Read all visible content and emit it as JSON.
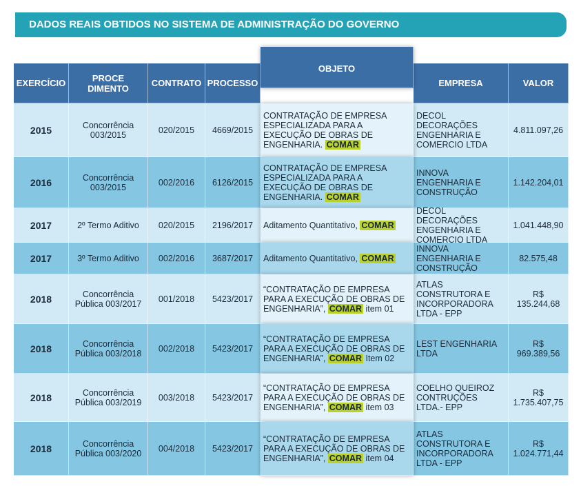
{
  "header": {
    "title": "DADOS REAIS OBTIDOS NO SISTEMA DE ADMINISTRAÇÃO DO GOVERNO"
  },
  "table": {
    "columns": [
      "EXERCÍCIO",
      "PROCE DIMENTO",
      "CONTRATO",
      "PROCESSO",
      "OBJETO",
      "EMPRESA",
      "VALOR"
    ],
    "rows": [
      [
        "2015",
        "Concorrência 003/2015",
        "020/2015",
        "4669/2015",
        {
          "text": "CONTRATAÇÃO DE EMPRESA ESPECIALIZADA PARA A EXECUÇÃO DE OBRAS DE ENGENHARIA.",
          "highlight": "COMAR"
        },
        "DECOL DECORAÇÕES ENGENHARIA E COMERCIO LTDA",
        "4.811.097,26"
      ],
      [
        "2016",
        "Concorrência 003/2015",
        "002/2016",
        "6126/2015",
        {
          "text": "CONTRATAÇÃO DE EMPRESA ESPECIALIZADA PARA A EXECUÇÃO DE OBRAS DE ENGENHARIA.",
          "highlight": "COMAR"
        },
        "INNOVA ENGENHARIA E CONSTRUÇÃO",
        "1.142.204,01"
      ],
      [
        "2017",
        "2º Termo Aditivo",
        "020/2015",
        "2196/2017",
        {
          "text": "Aditamento Quantitativo,",
          "highlight": "COMAR"
        },
        "DECOL DECORAÇÕES ENGENHARIA E COMERCIO LTDA",
        "1.041.448,90"
      ],
      [
        "2017",
        "3º Termo Aditivo",
        "002/2016",
        "3687/2017",
        {
          "text": "Aditamento Quantitativo,",
          "highlight": "COMAR"
        },
        "INNOVA ENGENHARIA E CONSTRUÇÃO",
        "82.575,48"
      ],
      [
        "2018",
        "Concorrência Pública 003/2017",
        "001/2018",
        "5423/2017",
        {
          "text": "“CONTRATAÇÃO DE EMPRESA PARA A EXECUÇÃO DE OBRAS DE ENGENHARIA”,",
          "highlight": "COMAR",
          "suffix": "item 01"
        },
        "ATLAS CONSTRUTORA E INCORPORADORA LTDA - EPP",
        "R$ 135.244,68"
      ],
      [
        "2018",
        "Concorrência Pública 003/2018",
        "002/2018",
        "5423/2017",
        {
          "text": "“CONTRATAÇÃO DE EMPRESA PARA A EXECUÇÃO DE OBRAS DE ENGENHARIA”,",
          "highlight": "COMAR",
          "suffix": "Item 02"
        },
        "LEST ENGENHARIA LTDA",
        "R$ 969.389,56"
      ],
      [
        "2018",
        "Concorrência Pública 003/2019",
        "003/2018",
        "5423/2017",
        {
          "text": "“CONTRATAÇÃO DE EMPRESA PARA A EXECUÇÃO DE OBRAS DE ENGENHARIA”,",
          "highlight": "COMAR",
          "suffix": "item 03"
        },
        "COELHO QUEIROZ CONTRUÇÕES LTDA.- EPP",
        "R$ 1.735.407,75"
      ],
      [
        "2018",
        "Concorrência Pública 003/2020",
        "004/2018",
        "5423/2017",
        {
          "text": "“CONTRATAÇÃO DE EMPRESA PARA A EXECUÇÃO DE OBRAS DE ENGENHARIA”,",
          "highlight": "COMAR",
          "suffix": "item 04"
        },
        "ATLAS CONSTRUTORA E INCORPORADORA LTDA - EPP",
        "R$ 1.024.771,44"
      ]
    ]
  }
}
